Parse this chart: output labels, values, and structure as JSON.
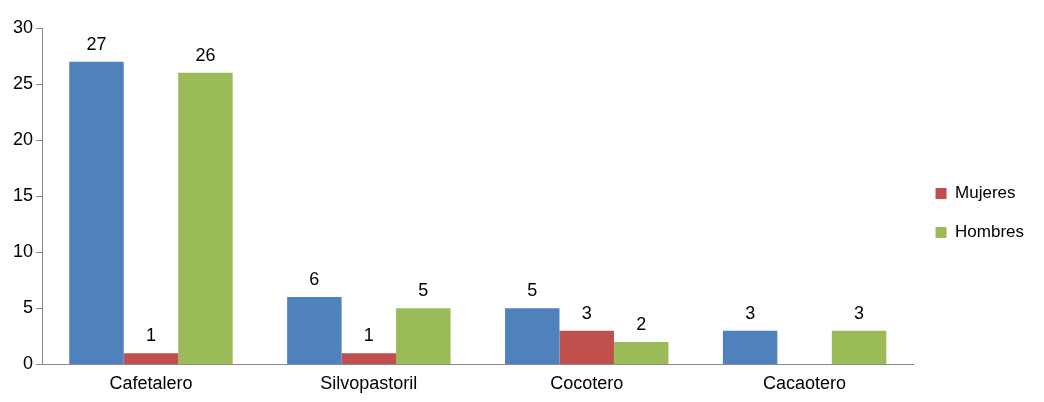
{
  "chart_data": {
    "type": "bar",
    "categories": [
      "Cafetalero",
      "Silvopastoril",
      "Cocotero",
      "Cacaotero"
    ],
    "series": [
      {
        "color": "#4f81bd",
        "values": [
          27,
          6,
          5,
          3
        ]
      },
      {
        "name": "Mujeres",
        "color": "#c0504d",
        "values": [
          1,
          1,
          3,
          null
        ]
      },
      {
        "name": "Hombres",
        "color": "#9bbb59",
        "values": [
          26,
          5,
          2,
          3
        ]
      }
    ],
    "ylim": [
      0,
      30
    ],
    "yticks": [
      0,
      5,
      10,
      15,
      20,
      25,
      30
    ],
    "grid": false,
    "legend": "right",
    "data_labels": true
  }
}
